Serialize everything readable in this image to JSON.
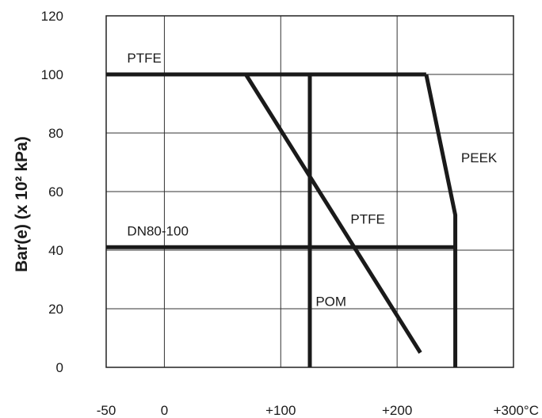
{
  "chart_data": {
    "type": "line",
    "ylabel": "Bar(e) (x 10² kPa)",
    "xunit": "°C",
    "xlim": [
      -50,
      300
    ],
    "ylim": [
      0,
      120
    ],
    "grid": true,
    "xticks": [
      -50,
      0,
      100,
      200,
      300
    ],
    "xtick_labels": [
      "-50",
      "0",
      "+100",
      "+200",
      "+300°C"
    ],
    "yticks": [
      0,
      20,
      40,
      60,
      80,
      100,
      120
    ],
    "ytick_labels": [
      "0",
      "20",
      "40",
      "60",
      "80",
      "100",
      "120"
    ],
    "series": [
      {
        "name": "PTFE",
        "points": [
          [
            -50,
            100
          ],
          [
            225,
            100
          ]
        ]
      },
      {
        "name": "PEEK",
        "points": [
          [
            225,
            100
          ],
          [
            250,
            52
          ],
          [
            250,
            0
          ]
        ]
      },
      {
        "name": "PTFE",
        "points": [
          [
            70,
            100
          ],
          [
            220,
            5
          ]
        ]
      },
      {
        "name": "POM",
        "points": [
          [
            125,
            100
          ],
          [
            125,
            0
          ]
        ]
      },
      {
        "name": "DN80-100",
        "points": [
          [
            -50,
            41
          ],
          [
            250,
            41
          ]
        ]
      }
    ],
    "annotations": [
      {
        "text": "PTFE",
        "x": -32,
        "y": 104
      },
      {
        "text": "PEEK",
        "x": 255,
        "y": 70
      },
      {
        "text": "PTFE",
        "x": 160,
        "y": 49
      },
      {
        "text": "POM",
        "x": 130,
        "y": 21
      },
      {
        "text": "DN80-100",
        "x": -32,
        "y": 45
      }
    ]
  }
}
